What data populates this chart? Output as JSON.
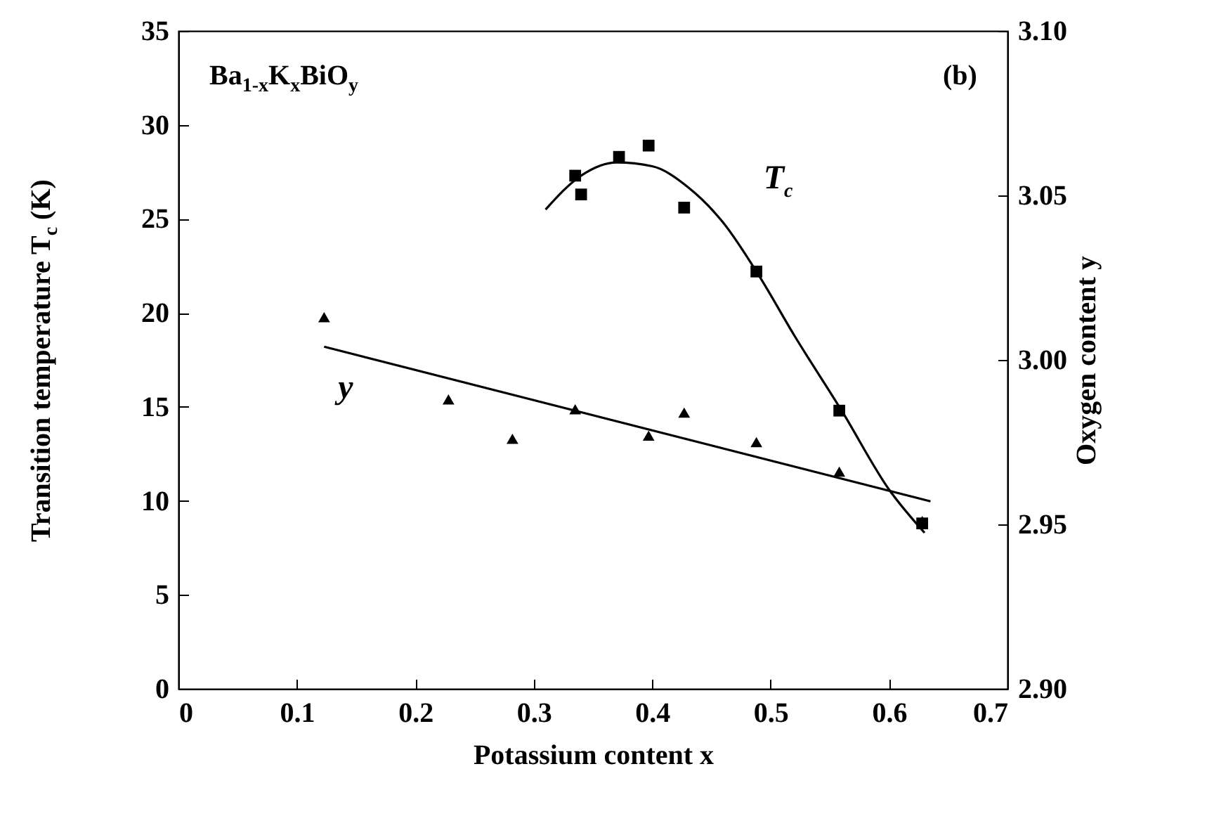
{
  "chart_data": {
    "type": "scatter",
    "xlabel": "Potassium content x",
    "ylabel": "Transition temperature T$_{c}$ (K)",
    "y2label": "Oxygen content y",
    "annotations": [
      "Ba$_{1-x}$K$_{x}$BiO$_{y}$",
      "(b)"
    ],
    "xlim": [
      0,
      0.7
    ],
    "xticks": [
      0,
      0.1,
      0.2,
      0.3,
      0.4,
      0.5,
      0.6,
      0.7
    ],
    "ylim": [
      0,
      35
    ],
    "yticks": [
      0,
      5,
      10,
      15,
      20,
      25,
      30,
      35
    ],
    "y2lim": [
      2.9,
      3.1
    ],
    "y2ticks": [
      {
        "value": 2.9,
        "label": "2.90"
      },
      {
        "value": 2.95,
        "label": "2.95"
      },
      {
        "value": 3.0,
        "label": "3.00"
      },
      {
        "value": 3.05,
        "label": "3.05"
      },
      {
        "value": 3.1,
        "label": "3.10"
      }
    ],
    "series": [
      {
        "name": "T$_{c}$",
        "marker": "square",
        "color": "#000000",
        "x": [
          0.335,
          0.34,
          0.372,
          0.397,
          0.427,
          0.488,
          0.558,
          0.628
        ],
        "values": [
          27.3,
          26.3,
          28.3,
          28.9,
          25.6,
          22.2,
          14.8,
          8.8
        ]
      },
      {
        "type": "line",
        "color": "#000000",
        "x": [
          0.31,
          0.34,
          0.37,
          0.4,
          0.43,
          0.46,
          0.49,
          0.52,
          0.56,
          0.6,
          0.63
        ],
        "values": [
          25.5,
          27.3,
          28.0,
          27.8,
          26.7,
          24.8,
          22.0,
          18.8,
          14.8,
          10.6,
          8.3
        ]
      },
      {
        "name": "y",
        "marker": "triangle",
        "axis": "y2",
        "color": "#000000",
        "x": [
          0.123,
          0.228,
          0.282,
          0.335,
          0.397,
          0.427,
          0.488,
          0.558,
          0.628
        ],
        "values": [
          3.013,
          2.988,
          2.976,
          2.985,
          2.977,
          2.984,
          2.975,
          2.966,
          2.951
        ]
      },
      {
        "type": "line",
        "axis": "y2",
        "color": "#000000",
        "x": [
          0.123,
          0.635
        ],
        "values": [
          3.004,
          2.957
        ]
      }
    ]
  }
}
